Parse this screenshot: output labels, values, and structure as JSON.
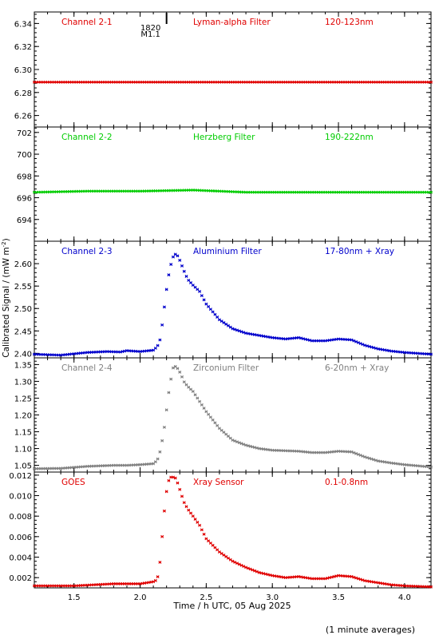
{
  "xlabel": "Time / h UTC, 05 Aug 2025",
  "ylabel": "Calibrated Signal / (mW m",
  "ylabel_sup": "-2",
  "ylabel_tail": ")",
  "footnote": "(1 minute averages)",
  "event_marker": {
    "time": 2.2,
    "label_top": "1820",
    "label_bottom": "M1.1"
  },
  "colors": {
    "red": "#e00000",
    "green": "#00cc00",
    "blue": "#0000cc",
    "gray": "#808080",
    "axis": "#000000"
  },
  "chart_data": [
    {
      "type": "scatter",
      "name_label": "Channel 2-1",
      "filter_label": "Lyman-alpha Filter",
      "band_label": "120-123nm",
      "color": "red",
      "xlim": [
        1.2,
        4.2
      ],
      "ylim": [
        6.25,
        6.35
      ],
      "yticks": [
        6.26,
        6.28,
        6.3,
        6.32,
        6.34
      ],
      "ytick_labels": [
        "6.26",
        "6.28",
        "6.30",
        "6.32",
        "6.34"
      ],
      "points": [
        [
          1.2,
          6.289
        ],
        [
          4.2,
          6.289
        ]
      ]
    },
    {
      "type": "scatter",
      "name_label": "Channel 2-2",
      "filter_label": "Herzberg Filter",
      "band_label": "190-222nm",
      "color": "green",
      "xlim": [
        1.2,
        4.2
      ],
      "ylim": [
        692.0,
        702.5
      ],
      "yticks": [
        694,
        696,
        698,
        700,
        702
      ],
      "ytick_labels": [
        "694",
        "696",
        "698",
        "700",
        "702"
      ],
      "points": [
        [
          1.2,
          696.5
        ],
        [
          1.6,
          696.6
        ],
        [
          2.0,
          696.6
        ],
        [
          2.4,
          696.7
        ],
        [
          2.8,
          696.5
        ],
        [
          3.5,
          696.5
        ],
        [
          4.2,
          696.5
        ]
      ]
    },
    {
      "type": "scatter",
      "name_label": "Channel 2-3",
      "filter_label": "Aluminium Filter",
      "band_label": "17-80nm + Xray",
      "color": "blue",
      "xlim": [
        1.2,
        4.2
      ],
      "ylim": [
        2.39,
        2.65
      ],
      "yticks": [
        2.4,
        2.45,
        2.5,
        2.55,
        2.6
      ],
      "ytick_labels": [
        "2.40",
        "2.45",
        "2.50",
        "2.55",
        "2.60"
      ],
      "points": [
        [
          1.2,
          2.398
        ],
        [
          1.4,
          2.396
        ],
        [
          1.6,
          2.402
        ],
        [
          1.75,
          2.404
        ],
        [
          1.85,
          2.403
        ],
        [
          1.9,
          2.406
        ],
        [
          2.0,
          2.404
        ],
        [
          2.1,
          2.407
        ],
        [
          2.13,
          2.415
        ],
        [
          2.15,
          2.43
        ],
        [
          2.17,
          2.47
        ],
        [
          2.19,
          2.52
        ],
        [
          2.21,
          2.565
        ],
        [
          2.23,
          2.595
        ],
        [
          2.25,
          2.615
        ],
        [
          2.27,
          2.622
        ],
        [
          2.29,
          2.615
        ],
        [
          2.31,
          2.6
        ],
        [
          2.33,
          2.585
        ],
        [
          2.36,
          2.565
        ],
        [
          2.4,
          2.552
        ],
        [
          2.45,
          2.538
        ],
        [
          2.5,
          2.51
        ],
        [
          2.6,
          2.475
        ],
        [
          2.7,
          2.455
        ],
        [
          2.8,
          2.445
        ],
        [
          2.9,
          2.44
        ],
        [
          3.0,
          2.435
        ],
        [
          3.1,
          2.432
        ],
        [
          3.2,
          2.435
        ],
        [
          3.3,
          2.428
        ],
        [
          3.4,
          2.428
        ],
        [
          3.5,
          2.432
        ],
        [
          3.6,
          2.43
        ],
        [
          3.7,
          2.418
        ],
        [
          3.8,
          2.41
        ],
        [
          3.9,
          2.405
        ],
        [
          4.0,
          2.402
        ],
        [
          4.2,
          2.398
        ]
      ]
    },
    {
      "type": "scatter",
      "name_label": "Channel 2-4",
      "filter_label": "Zirconium Filter",
      "band_label": "6-20nm + Xray",
      "color": "gray",
      "xlim": [
        1.2,
        4.2
      ],
      "ylim": [
        1.03,
        1.37
      ],
      "yticks": [
        1.05,
        1.1,
        1.15,
        1.2,
        1.25,
        1.3,
        1.35
      ],
      "ytick_labels": [
        "1.05",
        "1.10",
        "1.15",
        "1.20",
        "1.25",
        "1.30",
        "1.35"
      ],
      "points": [
        [
          1.2,
          1.04
        ],
        [
          1.4,
          1.041
        ],
        [
          1.6,
          1.047
        ],
        [
          1.8,
          1.05
        ],
        [
          1.9,
          1.05
        ],
        [
          2.0,
          1.052
        ],
        [
          2.1,
          1.055
        ],
        [
          2.13,
          1.065
        ],
        [
          2.15,
          1.09
        ],
        [
          2.17,
          1.13
        ],
        [
          2.19,
          1.18
        ],
        [
          2.21,
          1.25
        ],
        [
          2.23,
          1.3
        ],
        [
          2.25,
          1.34
        ],
        [
          2.27,
          1.345
        ],
        [
          2.29,
          1.335
        ],
        [
          2.31,
          1.32
        ],
        [
          2.33,
          1.3
        ],
        [
          2.36,
          1.285
        ],
        [
          2.4,
          1.27
        ],
        [
          2.45,
          1.24
        ],
        [
          2.5,
          1.21
        ],
        [
          2.6,
          1.16
        ],
        [
          2.7,
          1.125
        ],
        [
          2.8,
          1.11
        ],
        [
          2.9,
          1.1
        ],
        [
          3.0,
          1.095
        ],
        [
          3.2,
          1.092
        ],
        [
          3.3,
          1.088
        ],
        [
          3.4,
          1.088
        ],
        [
          3.5,
          1.092
        ],
        [
          3.6,
          1.09
        ],
        [
          3.7,
          1.075
        ],
        [
          3.8,
          1.063
        ],
        [
          3.9,
          1.057
        ],
        [
          4.0,
          1.052
        ],
        [
          4.2,
          1.045
        ]
      ]
    },
    {
      "type": "scatter",
      "name_label": "GOES",
      "filter_label": "Xray Sensor",
      "band_label": "0.1-0.8nm",
      "color": "red",
      "xlim": [
        1.2,
        4.2
      ],
      "ylim": [
        0.001,
        0.0123
      ],
      "yticks": [
        0.002,
        0.004,
        0.006,
        0.008,
        0.01,
        0.012
      ],
      "ytick_labels": [
        "0.002",
        "0.004",
        "0.006",
        "0.008",
        "0.010",
        "0.012"
      ],
      "points": [
        [
          1.2,
          0.0012
        ],
        [
          1.5,
          0.0012
        ],
        [
          1.8,
          0.0014
        ],
        [
          1.9,
          0.0014
        ],
        [
          2.0,
          0.0014
        ],
        [
          2.1,
          0.0016
        ],
        [
          2.13,
          0.0018
        ],
        [
          2.15,
          0.0035
        ],
        [
          2.17,
          0.0065
        ],
        [
          2.19,
          0.0095
        ],
        [
          2.21,
          0.0113
        ],
        [
          2.23,
          0.0118
        ],
        [
          2.25,
          0.0118
        ],
        [
          2.27,
          0.0117
        ],
        [
          2.29,
          0.011
        ],
        [
          2.31,
          0.0102
        ],
        [
          2.33,
          0.0094
        ],
        [
          2.36,
          0.0087
        ],
        [
          2.4,
          0.008
        ],
        [
          2.45,
          0.0071
        ],
        [
          2.5,
          0.0058
        ],
        [
          2.6,
          0.0045
        ],
        [
          2.7,
          0.0036
        ],
        [
          2.8,
          0.003
        ],
        [
          2.9,
          0.0025
        ],
        [
          3.0,
          0.0022
        ],
        [
          3.1,
          0.002
        ],
        [
          3.2,
          0.0021
        ],
        [
          3.3,
          0.0019
        ],
        [
          3.4,
          0.0019
        ],
        [
          3.5,
          0.0022
        ],
        [
          3.6,
          0.0021
        ],
        [
          3.7,
          0.0017
        ],
        [
          3.8,
          0.0015
        ],
        [
          3.9,
          0.0013
        ],
        [
          4.0,
          0.0012
        ],
        [
          4.2,
          0.0011
        ]
      ]
    }
  ],
  "xaxis": {
    "ticks": [
      1.5,
      2.0,
      2.5,
      3.0,
      3.5,
      4.0
    ],
    "tick_labels": [
      "1.5",
      "2.0",
      "2.5",
      "3.0",
      "3.5",
      "4.0"
    ]
  }
}
